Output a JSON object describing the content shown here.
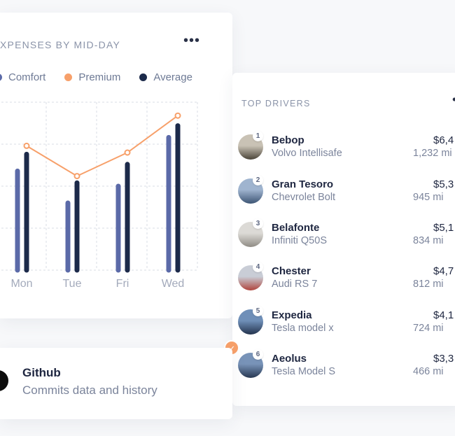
{
  "expenses_card": {
    "title": "XPENSES BY MID-DAY",
    "menu_label": "•••",
    "legend": [
      {
        "label": "Comfort",
        "color": "#5b6aa8"
      },
      {
        "label": "Premium",
        "color": "#f7a06a"
      },
      {
        "label": "Average",
        "color": "#1c2a4a"
      }
    ]
  },
  "chart_data": {
    "type": "bar",
    "categories": [
      "Mon",
      "Tue",
      "Fri",
      "Wed"
    ],
    "series": [
      {
        "name": "Comfort",
        "type": "bar",
        "values": [
          59,
          40,
          50,
          79
        ],
        "color": "#5b6aa8"
      },
      {
        "name": "Average",
        "type": "bar",
        "values": [
          69,
          52,
          63,
          86
        ],
        "color": "#1c2a4a"
      },
      {
        "name": "Premium",
        "type": "line",
        "values": [
          74,
          56,
          70,
          92
        ],
        "color": "#f7a06a"
      }
    ],
    "ylim": [
      0,
      100
    ],
    "grid": true,
    "legend_position": "top"
  },
  "drivers_card": {
    "title": "TOP DRIVERS",
    "menu_label": "•",
    "drivers": [
      {
        "rank": "1",
        "name": "Bebop",
        "car": "Volvo Intellisafe",
        "amount": "$6,4",
        "miles": "1,232 mi"
      },
      {
        "rank": "2",
        "name": "Gran Tesoro",
        "car": "Chevrolet Bolt",
        "amount": "$5,3",
        "miles": "945 mi"
      },
      {
        "rank": "3",
        "name": "Belafonte",
        "car": "Infiniti Q50S",
        "amount": "$5,1",
        "miles": "834 mi"
      },
      {
        "rank": "4",
        "name": "Chester",
        "car": "Audi RS 7",
        "amount": "$4,7",
        "miles": "812 mi"
      },
      {
        "rank": "5",
        "name": "Expedia",
        "car": "Tesla model x",
        "amount": "$4,1",
        "miles": "724 mi"
      },
      {
        "rank": "6",
        "name": "Aeolus",
        "car": "Tesla Model S",
        "amount": "$3,3",
        "miles": "466 mi"
      }
    ],
    "avatar_colors": [
      [
        "#c9c2b5",
        "#4a4438"
      ],
      [
        "#9fb4cf",
        "#3d5574"
      ],
      [
        "#dcdad6",
        "#8f8b84"
      ],
      [
        "#c9cdd6",
        "#b0443c"
      ],
      [
        "#6f8fb8",
        "#23334d"
      ],
      [
        "#7893b8",
        "#283852"
      ]
    ]
  },
  "check_badge": "✓",
  "github_card": {
    "title": "Github",
    "subtitle": "Commits data and history",
    "icon": "github-icon"
  }
}
